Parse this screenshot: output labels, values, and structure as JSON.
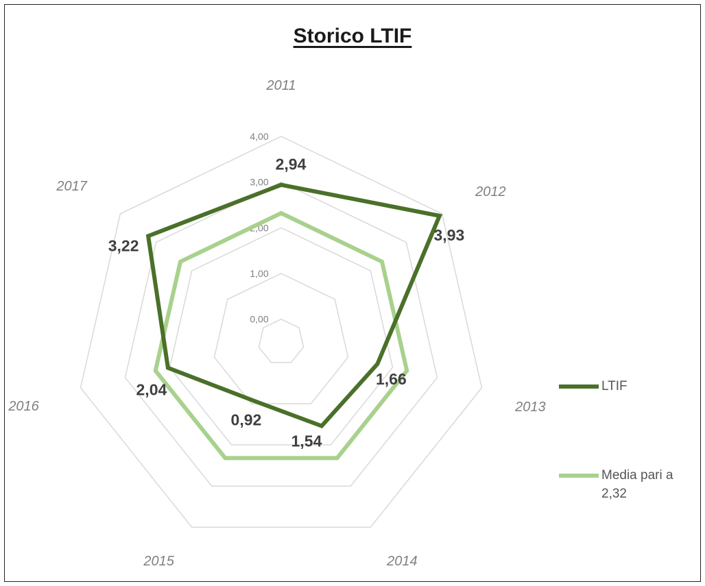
{
  "chart_data": {
    "type": "radar",
    "title": "Storico LTIF",
    "categories": [
      "2011",
      "2012",
      "2013",
      "2014",
      "2015",
      "2016",
      "2017"
    ],
    "rlim": [
      0,
      4
    ],
    "rticks": [
      "0,00",
      "1,00",
      "2,00",
      "3,00",
      "4,00"
    ],
    "rtick_values": [
      0,
      1,
      2,
      3,
      4
    ],
    "series": [
      {
        "name": "LTIF",
        "values": [
          2.94,
          3.93,
          1.66,
          1.54,
          0.92,
          2.04,
          3.22
        ],
        "labels": [
          "2,94",
          "3,93",
          "1,66",
          "1,54",
          "0,92",
          "2,04",
          "3,22"
        ],
        "color": "#4a7029"
      },
      {
        "name": "Media pari a 2,32",
        "values": [
          2.32,
          2.32,
          2.32,
          2.32,
          2.32,
          2.32,
          2.32
        ],
        "color": "#a9d18e"
      }
    ],
    "grid": true,
    "legend_position": "right"
  }
}
